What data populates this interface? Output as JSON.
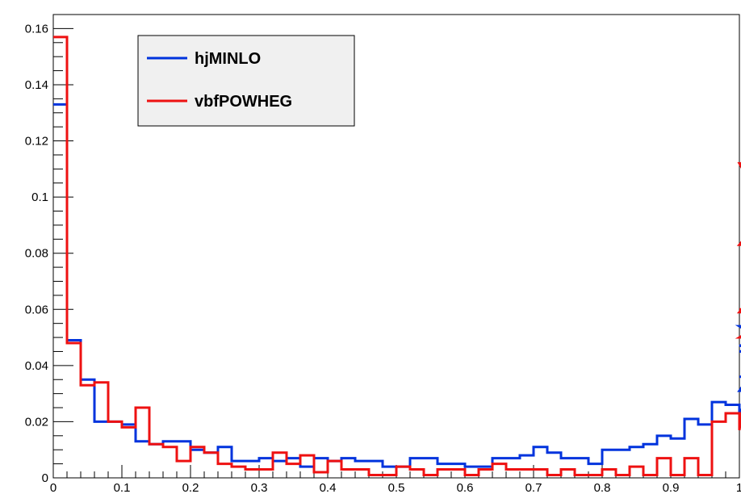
{
  "chart_data": {
    "type": "step-histogram",
    "title": "",
    "xlabel": "",
    "ylabel": "",
    "xlim": [
      0,
      1
    ],
    "ylim": [
      0,
      0.165
    ],
    "grid": false,
    "legend_position": "top-left",
    "bin_width": 0.02,
    "x_ticks": [
      "0",
      "0.1",
      "0.2",
      "0.3",
      "0.4",
      "0.5",
      "0.6",
      "0.7",
      "0.8",
      "0.9",
      "1"
    ],
    "y_ticks": [
      "0",
      "0.02",
      "0.04",
      "0.06",
      "0.08",
      "0.1",
      "0.12",
      "0.14",
      "0.16"
    ],
    "series": [
      {
        "name": "hjMINLO",
        "color": "#0033dd",
        "values": [
          0.133,
          0.049,
          0.035,
          0.02,
          0.02,
          0.019,
          0.013,
          0.012,
          0.013,
          0.013,
          0.01,
          0.009,
          0.011,
          0.006,
          0.006,
          0.007,
          0.006,
          0.007,
          0.004,
          0.007,
          0.006,
          0.007,
          0.006,
          0.006,
          0.004,
          0.004,
          0.007,
          0.007,
          0.005,
          0.005,
          0.004,
          0.004,
          0.007,
          0.007,
          0.008,
          0.011,
          0.009,
          0.007,
          0.007,
          0.005,
          0.01,
          0.01,
          0.011,
          0.012,
          0.015,
          0.014,
          0.021,
          0.019,
          0.027,
          0.026,
          0.023,
          0.031,
          0.045,
          0.047,
          0.054,
          0.054,
          0.036
        ]
      },
      {
        "name": "vbfPOWHEG",
        "color": "#ee1111",
        "values": [
          0.157,
          0.048,
          0.033,
          0.034,
          0.02,
          0.018,
          0.025,
          0.012,
          0.011,
          0.006,
          0.011,
          0.009,
          0.005,
          0.004,
          0.003,
          0.003,
          0.009,
          0.005,
          0.008,
          0.002,
          0.006,
          0.003,
          0.003,
          0.001,
          0.001,
          0.004,
          0.003,
          0.001,
          0.003,
          0.003,
          0.001,
          0.003,
          0.005,
          0.003,
          0.003,
          0.003,
          0.001,
          0.003,
          0.001,
          0.001,
          0.003,
          0.001,
          0.004,
          0.001,
          0.007,
          0.001,
          0.007,
          0.001,
          0.02,
          0.023,
          0.017,
          0.05,
          0.05,
          0.059,
          0.083,
          0.112,
          0.06
        ]
      }
    ]
  }
}
